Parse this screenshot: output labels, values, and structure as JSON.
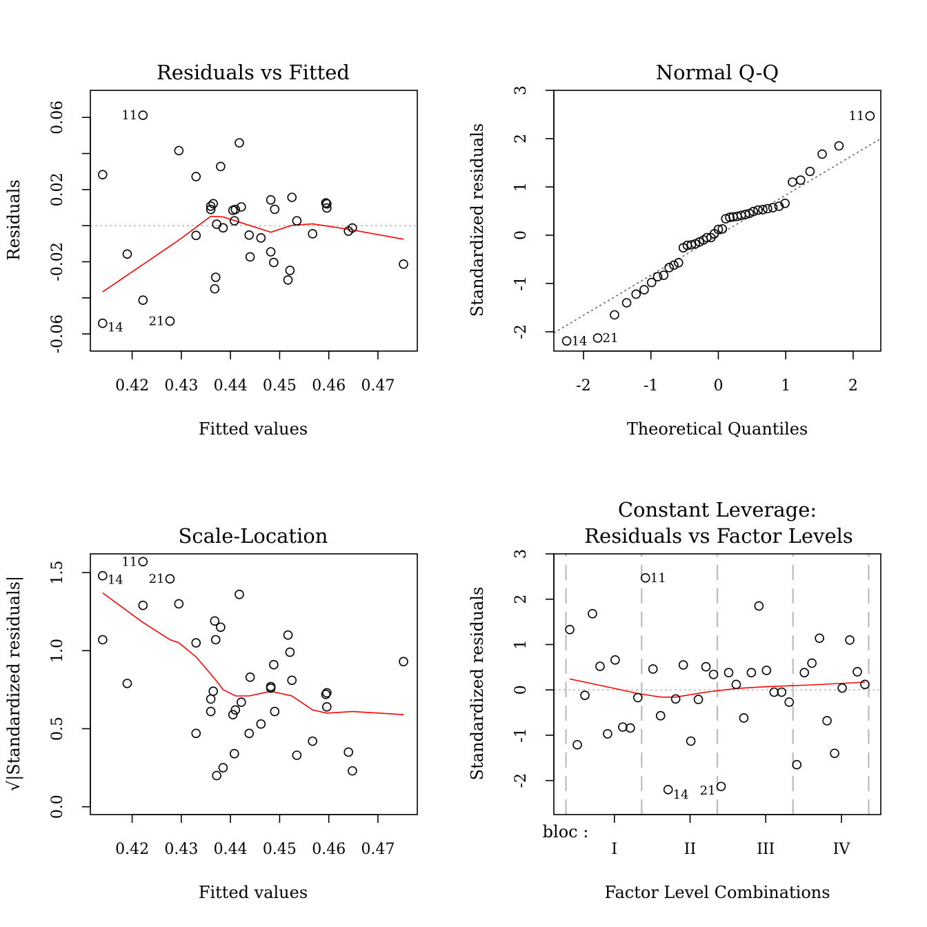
{
  "chart_data": [
    {
      "type": "scatter",
      "title": "Residuals vs Fitted",
      "xlabel": "Fitted values",
      "ylabel": "Residuals",
      "xlim": [
        0.4115,
        0.478
      ],
      "ylim": [
        -0.0695,
        0.075
      ],
      "xticks": [
        0.42,
        0.43,
        0.44,
        0.45,
        0.46,
        0.47
      ],
      "xtick_labels": [
        "0.42",
        "0.43",
        "0.44",
        "0.45",
        "0.46",
        "0.47"
      ],
      "yticks": [
        -0.06,
        -0.04,
        -0.02,
        0,
        0.02,
        0.04,
        0.06
      ],
      "ytick_labels": [
        "-0.06",
        "",
        "-0.02",
        "",
        "0.02",
        "",
        "0.06"
      ],
      "reference_y": 0,
      "points": [
        {
          "x": 0.414,
          "y": 0.0283
        },
        {
          "x": 0.414,
          "y": -0.0541,
          "label": "14"
        },
        {
          "x": 0.419,
          "y": -0.0157
        },
        {
          "x": 0.4222,
          "y": 0.0612,
          "label": "11"
        },
        {
          "x": 0.4222,
          "y": -0.0413
        },
        {
          "x": 0.4277,
          "y": -0.0529,
          "label": "21"
        },
        {
          "x": 0.4295,
          "y": 0.0416
        },
        {
          "x": 0.433,
          "y": 0.0272
        },
        {
          "x": 0.433,
          "y": -0.0054
        },
        {
          "x": 0.436,
          "y": 0.0108
        },
        {
          "x": 0.436,
          "y": 0.009
        },
        {
          "x": 0.4365,
          "y": 0.0122
        },
        {
          "x": 0.4368,
          "y": -0.035
        },
        {
          "x": 0.437,
          "y": -0.0286
        },
        {
          "x": 0.4372,
          "y": 0.0008
        },
        {
          "x": 0.438,
          "y": 0.0328
        },
        {
          "x": 0.4385,
          "y": -0.0012
        },
        {
          "x": 0.4405,
          "y": 0.0085
        },
        {
          "x": 0.4408,
          "y": 0.0027
        },
        {
          "x": 0.441,
          "y": 0.009
        },
        {
          "x": 0.4418,
          "y": 0.0459
        },
        {
          "x": 0.4422,
          "y": 0.0104
        },
        {
          "x": 0.4438,
          "y": -0.0052
        },
        {
          "x": 0.444,
          "y": -0.0173
        },
        {
          "x": 0.4462,
          "y": -0.0068
        },
        {
          "x": 0.4482,
          "y": 0.0143
        },
        {
          "x": 0.4482,
          "y": -0.0145
        },
        {
          "x": 0.4488,
          "y": -0.0204
        },
        {
          "x": 0.449,
          "y": 0.0091
        },
        {
          "x": 0.4517,
          "y": -0.0301
        },
        {
          "x": 0.4521,
          "y": -0.0248
        },
        {
          "x": 0.4525,
          "y": 0.0157
        },
        {
          "x": 0.4535,
          "y": 0.0027
        },
        {
          "x": 0.4567,
          "y": -0.0045
        },
        {
          "x": 0.4594,
          "y": 0.0126
        },
        {
          "x": 0.4596,
          "y": 0.0121
        },
        {
          "x": 0.4596,
          "y": 0.0098
        },
        {
          "x": 0.464,
          "y": -0.003
        },
        {
          "x": 0.4648,
          "y": -0.0013
        },
        {
          "x": 0.4752,
          "y": -0.0213
        }
      ],
      "smooth": [
        {
          "x": 0.414,
          "y": -0.0367
        },
        {
          "x": 0.4295,
          "y": -0.008
        },
        {
          "x": 0.436,
          "y": 0.0052
        },
        {
          "x": 0.4385,
          "y": 0.0048
        },
        {
          "x": 0.4482,
          "y": -0.0036
        },
        {
          "x": 0.4525,
          "y": 0.0002
        },
        {
          "x": 0.4567,
          "y": 0.001
        },
        {
          "x": 0.464,
          "y": -0.002
        },
        {
          "x": 0.4752,
          "y": -0.0075
        }
      ]
    },
    {
      "type": "scatter",
      "title": "Normal Q-Q",
      "xlabel": "Theoretical Quantiles",
      "ylabel": "Standardized residuals",
      "xlim": [
        -2.44,
        2.41
      ],
      "ylim": [
        -2.4,
        3.0
      ],
      "xticks": [
        -2,
        -1,
        0,
        1,
        2
      ],
      "xtick_labels": [
        "-2",
        "-1",
        "0",
        "1",
        "2"
      ],
      "yticks": [
        -2,
        -1,
        0,
        1,
        2,
        3
      ],
      "ytick_labels": [
        "-2",
        "-1",
        "0",
        "1",
        "2",
        "3"
      ],
      "reference_line": {
        "intercept": 0.0,
        "slope": 0.83
      },
      "points": [
        {
          "x": -2.25,
          "y": -2.19,
          "label": "14"
        },
        {
          "x": -1.79,
          "y": -2.13,
          "label": "21"
        },
        {
          "x": -1.54,
          "y": -1.65
        },
        {
          "x": -1.36,
          "y": -1.4
        },
        {
          "x": -1.22,
          "y": -1.22
        },
        {
          "x": -1.1,
          "y": -1.13
        },
        {
          "x": -0.99,
          "y": -0.98
        },
        {
          "x": -0.9,
          "y": -0.86
        },
        {
          "x": -0.81,
          "y": -0.83
        },
        {
          "x": -0.73,
          "y": -0.67
        },
        {
          "x": -0.66,
          "y": -0.62
        },
        {
          "x": -0.59,
          "y": -0.57
        },
        {
          "x": -0.52,
          "y": -0.26
        },
        {
          "x": -0.46,
          "y": -0.21
        },
        {
          "x": -0.4,
          "y": -0.2
        },
        {
          "x": -0.34,
          "y": -0.18
        },
        {
          "x": -0.28,
          "y": -0.14
        },
        {
          "x": -0.22,
          "y": -0.1
        },
        {
          "x": -0.17,
          "y": -0.05
        },
        {
          "x": -0.11,
          "y": -0.05
        },
        {
          "x": -0.06,
          "y": 0.03
        },
        {
          "x": 0.0,
          "y": 0.12
        },
        {
          "x": 0.06,
          "y": 0.13
        },
        {
          "x": 0.11,
          "y": 0.34
        },
        {
          "x": 0.17,
          "y": 0.37
        },
        {
          "x": 0.22,
          "y": 0.38
        },
        {
          "x": 0.28,
          "y": 0.39
        },
        {
          "x": 0.34,
          "y": 0.41
        },
        {
          "x": 0.4,
          "y": 0.43
        },
        {
          "x": 0.46,
          "y": 0.45
        },
        {
          "x": 0.52,
          "y": 0.49
        },
        {
          "x": 0.59,
          "y": 0.52
        },
        {
          "x": 0.66,
          "y": 0.53
        },
        {
          "x": 0.73,
          "y": 0.55
        },
        {
          "x": 0.81,
          "y": 0.57
        },
        {
          "x": 0.9,
          "y": 0.6
        },
        {
          "x": 0.99,
          "y": 0.66
        },
        {
          "x": 1.1,
          "y": 1.1
        },
        {
          "x": 1.22,
          "y": 1.14
        },
        {
          "x": 1.36,
          "y": 1.32
        },
        {
          "x": 1.54,
          "y": 1.68
        },
        {
          "x": 1.79,
          "y": 1.85
        },
        {
          "x": 2.25,
          "y": 2.47,
          "label": "11"
        }
      ]
    },
    {
      "type": "scatter",
      "title": "Scale-Location",
      "xlabel": "Fitted values",
      "ylabel": "√|Standardized residuals|",
      "xlim": [
        0.4115,
        0.478
      ],
      "ylim": [
        -0.05,
        1.62
      ],
      "xticks": [
        0.42,
        0.43,
        0.44,
        0.45,
        0.46,
        0.47
      ],
      "xtick_labels": [
        "0.42",
        "0.43",
        "0.44",
        "0.45",
        "0.46",
        "0.47"
      ],
      "yticks": [
        0.0,
        0.5,
        1.0,
        1.5
      ],
      "ytick_labels": [
        "0.0",
        "0.5",
        "1.0",
        "1.5"
      ],
      "points": [
        {
          "x": 0.414,
          "y": 1.07
        },
        {
          "x": 0.414,
          "y": 1.48,
          "label": "14"
        },
        {
          "x": 0.419,
          "y": 0.79
        },
        {
          "x": 0.4222,
          "y": 1.57,
          "label": "11"
        },
        {
          "x": 0.4222,
          "y": 1.29
        },
        {
          "x": 0.4277,
          "y": 1.46,
          "label": "21"
        },
        {
          "x": 0.4295,
          "y": 1.3
        },
        {
          "x": 0.433,
          "y": 1.05
        },
        {
          "x": 0.433,
          "y": 0.47
        },
        {
          "x": 0.436,
          "y": 0.69
        },
        {
          "x": 0.436,
          "y": 0.61
        },
        {
          "x": 0.4365,
          "y": 0.74
        },
        {
          "x": 0.4368,
          "y": 1.19
        },
        {
          "x": 0.437,
          "y": 1.07
        },
        {
          "x": 0.4372,
          "y": 0.2
        },
        {
          "x": 0.438,
          "y": 1.15
        },
        {
          "x": 0.4385,
          "y": 0.25
        },
        {
          "x": 0.4405,
          "y": 0.59
        },
        {
          "x": 0.4408,
          "y": 0.34
        },
        {
          "x": 0.441,
          "y": 0.62
        },
        {
          "x": 0.4418,
          "y": 1.36
        },
        {
          "x": 0.4422,
          "y": 0.67
        },
        {
          "x": 0.4438,
          "y": 0.47
        },
        {
          "x": 0.444,
          "y": 0.83
        },
        {
          "x": 0.4462,
          "y": 0.53
        },
        {
          "x": 0.4482,
          "y": 0.77
        },
        {
          "x": 0.4482,
          "y": 0.76
        },
        {
          "x": 0.4488,
          "y": 0.91
        },
        {
          "x": 0.449,
          "y": 0.61
        },
        {
          "x": 0.4517,
          "y": 1.1
        },
        {
          "x": 0.4521,
          "y": 0.99
        },
        {
          "x": 0.4525,
          "y": 0.81
        },
        {
          "x": 0.4535,
          "y": 0.33
        },
        {
          "x": 0.4567,
          "y": 0.42
        },
        {
          "x": 0.4594,
          "y": 0.72
        },
        {
          "x": 0.4596,
          "y": 0.73
        },
        {
          "x": 0.4596,
          "y": 0.64
        },
        {
          "x": 0.464,
          "y": 0.35
        },
        {
          "x": 0.4648,
          "y": 0.23
        },
        {
          "x": 0.4752,
          "y": 0.93
        }
      ],
      "smooth": [
        {
          "x": 0.414,
          "y": 1.37
        },
        {
          "x": 0.4222,
          "y": 1.18
        },
        {
          "x": 0.4277,
          "y": 1.07
        },
        {
          "x": 0.4295,
          "y": 1.05
        },
        {
          "x": 0.433,
          "y": 0.96
        },
        {
          "x": 0.4368,
          "y": 0.82
        },
        {
          "x": 0.4385,
          "y": 0.75
        },
        {
          "x": 0.441,
          "y": 0.71
        },
        {
          "x": 0.4438,
          "y": 0.71
        },
        {
          "x": 0.4482,
          "y": 0.74
        },
        {
          "x": 0.4525,
          "y": 0.71
        },
        {
          "x": 0.4567,
          "y": 0.62
        },
        {
          "x": 0.4596,
          "y": 0.6
        },
        {
          "x": 0.4648,
          "y": 0.61
        },
        {
          "x": 0.4752,
          "y": 0.59
        }
      ]
    },
    {
      "type": "scatter",
      "title": "Constant Leverage:",
      "subtitle": "Residuals vs Factor Levels",
      "xlabel": "Factor Level Combinations",
      "ylabel": "Standardized residuals",
      "xlim": [
        0.2,
        4.52
      ],
      "ylim": [
        -2.75,
        3.0
      ],
      "xticks": [
        1,
        2,
        3,
        4
      ],
      "xtick_labels": [
        "I",
        "II",
        "III",
        "IV"
      ],
      "factor_label": "bloc :",
      "group_boundaries": [
        0.36,
        1.36,
        2.36,
        3.36,
        4.36
      ],
      "yticks": [
        -2,
        -1,
        0,
        1,
        2,
        3
      ],
      "ytick_labels": [
        "-2",
        "-1",
        "0",
        "1",
        "2",
        "3"
      ],
      "reference_y": 0,
      "points": [
        {
          "x": 0.41,
          "y": 1.33
        },
        {
          "x": 0.51,
          "y": -1.21
        },
        {
          "x": 0.61,
          "y": -0.12
        },
        {
          "x": 0.71,
          "y": 1.68
        },
        {
          "x": 0.81,
          "y": 0.52
        },
        {
          "x": 0.91,
          "y": -0.97
        },
        {
          "x": 1.01,
          "y": 0.66
        },
        {
          "x": 1.11,
          "y": -0.82
        },
        {
          "x": 1.21,
          "y": -0.84
        },
        {
          "x": 1.31,
          "y": -0.17
        },
        {
          "x": 1.41,
          "y": 2.47,
          "label": "11"
        },
        {
          "x": 1.51,
          "y": 0.46
        },
        {
          "x": 1.61,
          "y": -0.57
        },
        {
          "x": 1.71,
          "y": -2.2,
          "label": "14"
        },
        {
          "x": 1.81,
          "y": -0.2
        },
        {
          "x": 1.91,
          "y": 0.55
        },
        {
          "x": 2.01,
          "y": -1.13
        },
        {
          "x": 2.11,
          "y": -0.21
        },
        {
          "x": 2.21,
          "y": 0.51
        },
        {
          "x": 2.31,
          "y": 0.34
        },
        {
          "x": 2.41,
          "y": -2.13,
          "label": "21"
        },
        {
          "x": 2.51,
          "y": 0.38
        },
        {
          "x": 2.61,
          "y": 0.12
        },
        {
          "x": 2.71,
          "y": -0.62
        },
        {
          "x": 2.81,
          "y": 0.38
        },
        {
          "x": 2.91,
          "y": 1.85
        },
        {
          "x": 3.01,
          "y": 0.43
        },
        {
          "x": 3.11,
          "y": -0.05
        },
        {
          "x": 3.21,
          "y": -0.05
        },
        {
          "x": 3.31,
          "y": -0.27
        },
        {
          "x": 3.41,
          "y": -1.65
        },
        {
          "x": 3.51,
          "y": 0.38
        },
        {
          "x": 3.61,
          "y": 0.59
        },
        {
          "x": 3.71,
          "y": 1.14
        },
        {
          "x": 3.81,
          "y": -0.68
        },
        {
          "x": 3.91,
          "y": -1.4
        },
        {
          "x": 4.01,
          "y": 0.04
        },
        {
          "x": 4.11,
          "y": 1.1
        },
        {
          "x": 4.21,
          "y": 0.4
        },
        {
          "x": 4.31,
          "y": 0.12
        }
      ],
      "smooth": [
        {
          "x": 0.41,
          "y": 0.24
        },
        {
          "x": 0.81,
          "y": 0.1
        },
        {
          "x": 1.31,
          "y": -0.08
        },
        {
          "x": 1.61,
          "y": -0.16
        },
        {
          "x": 1.81,
          "y": -0.16
        },
        {
          "x": 2.21,
          "y": -0.05
        },
        {
          "x": 2.61,
          "y": 0.03
        },
        {
          "x": 3.01,
          "y": 0.07
        },
        {
          "x": 3.61,
          "y": 0.11
        },
        {
          "x": 4.31,
          "y": 0.17
        }
      ]
    }
  ]
}
